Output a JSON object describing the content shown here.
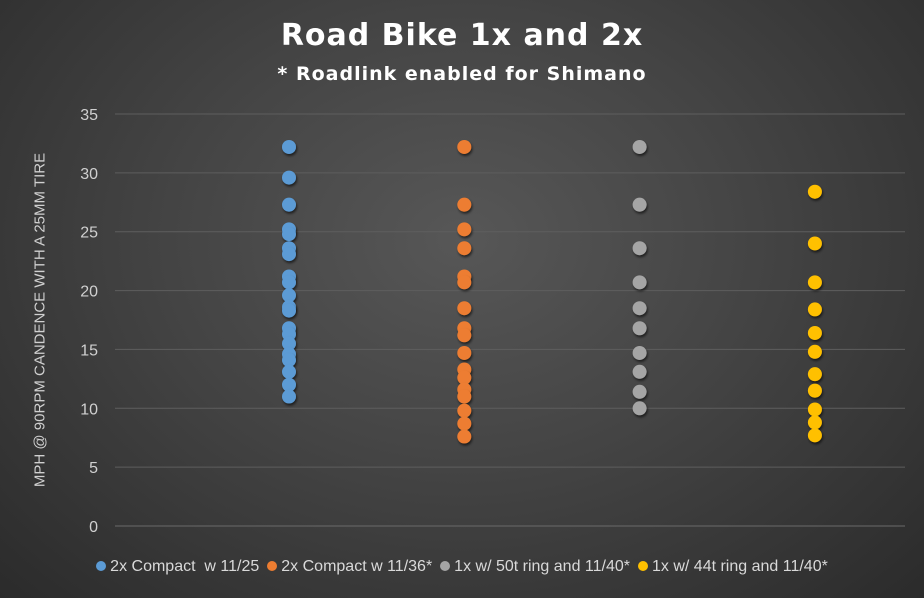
{
  "chart_data": {
    "type": "scatter",
    "title": "Road Bike 1x and 2x",
    "subtitle": "* Roadlink enabled for Shimano",
    "xlabel": "",
    "ylabel": "MPH @ 90RPM CANDENCE WITH A 25MM TIRE",
    "ylim": [
      0,
      35
    ],
    "yticks": [
      "0",
      "5",
      "10",
      "15",
      "20",
      "25",
      "30",
      "35"
    ],
    "grid": true,
    "legend": "bottom",
    "series": [
      {
        "name": "2x Compact  w 11/25",
        "color": "#5b9bd5",
        "x": 1,
        "values": [
          32.2,
          29.6,
          27.3,
          25.2,
          24.8,
          23.6,
          23.1,
          21.2,
          20.7,
          19.6,
          18.6,
          18.3,
          16.8,
          16.3,
          15.5,
          14.6,
          14.1,
          13.1,
          12.0,
          11.0
        ]
      },
      {
        "name": "2x Compact w 11/36*",
        "color": "#ed7d31",
        "x": 2,
        "values": [
          32.2,
          27.3,
          25.2,
          23.6,
          21.2,
          20.7,
          18.5,
          16.8,
          16.2,
          14.7,
          13.3,
          12.6,
          11.6,
          11.0,
          9.8,
          8.7,
          7.6
        ]
      },
      {
        "name": "1x w/ 50t ring and 11/40*",
        "color": "#a5a5a5",
        "x": 3,
        "values": [
          32.2,
          27.3,
          23.6,
          20.7,
          18.5,
          16.8,
          14.7,
          13.1,
          11.4,
          10.0
        ]
      },
      {
        "name": "1x w/ 44t ring and 11/40*",
        "color": "#ffc000",
        "x": 4,
        "values": [
          28.4,
          24.0,
          20.7,
          18.4,
          16.4,
          14.8,
          12.9,
          11.5,
          9.9,
          8.8,
          7.7
        ]
      }
    ]
  }
}
